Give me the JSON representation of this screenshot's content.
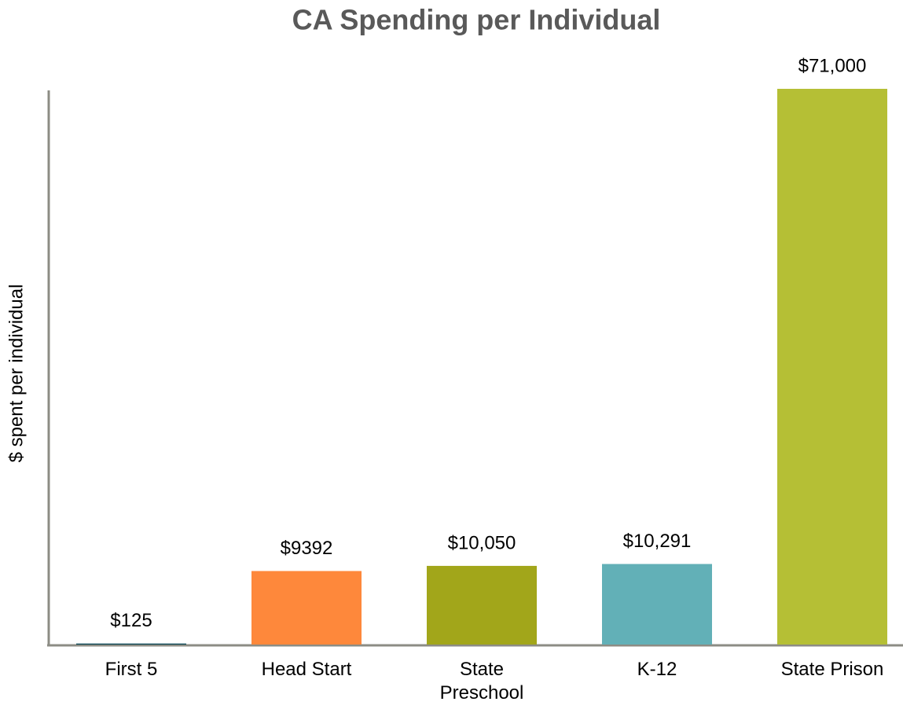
{
  "chart_data": {
    "type": "bar",
    "title": "CA Spending per Individual",
    "y_label": "$ spent per individual",
    "categories": [
      "First 5",
      "Head Start",
      "State Preschool",
      "K-12",
      "State Prison"
    ],
    "values": [
      125,
      9392,
      10050,
      10291,
      71000
    ],
    "value_labels": [
      "$125",
      "$9392",
      "$10,050",
      "$10,291",
      "$71,000"
    ],
    "colors": [
      "#003f4f",
      "#fe883b",
      "#a2a61a",
      "#62b0b7",
      "#b5bf35"
    ],
    "ylim": [
      0,
      71000
    ]
  }
}
